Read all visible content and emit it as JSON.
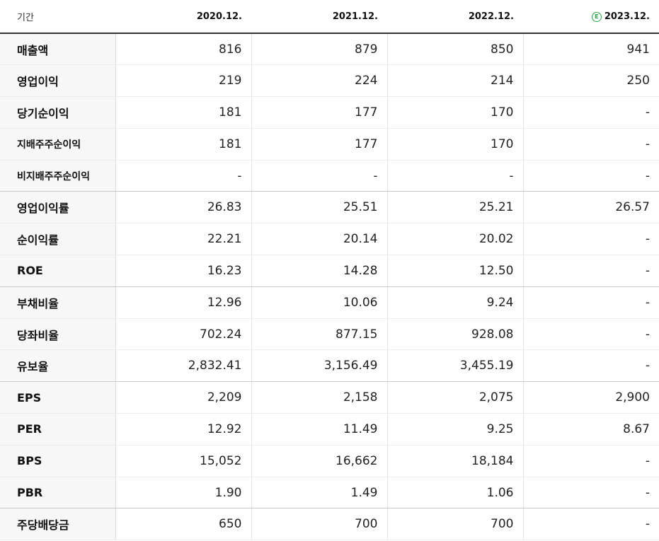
{
  "header": {
    "label": "기간",
    "periods": [
      "2020.12.",
      "2021.12.",
      "2022.12.",
      "2023.12."
    ],
    "estimate_badge": "E",
    "estimate_badge_color": "#2aa84a"
  },
  "rows": [
    {
      "label": "매출액",
      "values": [
        "816",
        "879",
        "850",
        "941"
      ]
    },
    {
      "label": "영업이익",
      "values": [
        "219",
        "224",
        "214",
        "250"
      ]
    },
    {
      "label": "당기순이익",
      "values": [
        "181",
        "177",
        "170",
        "-"
      ]
    },
    {
      "label": "지배주주순이익",
      "values": [
        "181",
        "177",
        "170",
        "-"
      ]
    },
    {
      "label": "비지배주주순이익",
      "values": [
        "-",
        "-",
        "-",
        "-"
      ]
    },
    {
      "label": "영업이익률",
      "values": [
        "26.83",
        "25.51",
        "25.21",
        "26.57"
      ]
    },
    {
      "label": "순이익률",
      "values": [
        "22.21",
        "20.14",
        "20.02",
        "-"
      ]
    },
    {
      "label": "ROE",
      "values": [
        "16.23",
        "14.28",
        "12.50",
        "-"
      ]
    },
    {
      "label": "부채비율",
      "values": [
        "12.96",
        "10.06",
        "9.24",
        "-"
      ]
    },
    {
      "label": "당좌비율",
      "values": [
        "702.24",
        "877.15",
        "928.08",
        "-"
      ]
    },
    {
      "label": "유보율",
      "values": [
        "2,832.41",
        "3,156.49",
        "3,455.19",
        "-"
      ]
    },
    {
      "label": "EPS",
      "values": [
        "2,209",
        "2,158",
        "2,075",
        "2,900"
      ]
    },
    {
      "label": "PER",
      "values": [
        "12.92",
        "11.49",
        "9.25",
        "8.67"
      ]
    },
    {
      "label": "BPS",
      "values": [
        "15,052",
        "16,662",
        "18,184",
        "-"
      ]
    },
    {
      "label": "PBR",
      "values": [
        "1.90",
        "1.49",
        "1.06",
        "-"
      ]
    },
    {
      "label": "주당배당금",
      "values": [
        "650",
        "700",
        "700",
        "-"
      ]
    }
  ]
}
